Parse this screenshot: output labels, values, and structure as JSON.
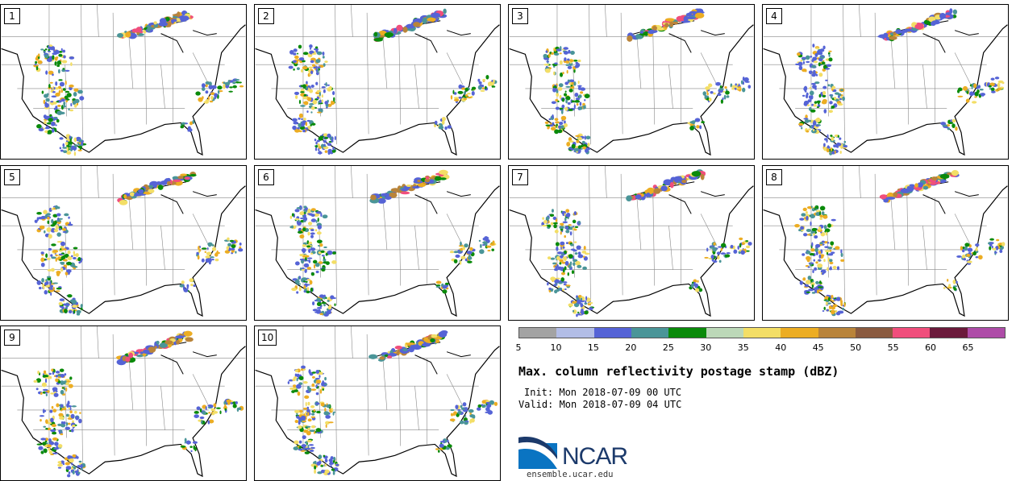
{
  "panels": [
    {
      "member": "1"
    },
    {
      "member": "2"
    },
    {
      "member": "3"
    },
    {
      "member": "4"
    },
    {
      "member": "5"
    },
    {
      "member": "6"
    },
    {
      "member": "7"
    },
    {
      "member": "8"
    },
    {
      "member": "9"
    },
    {
      "member": "10"
    }
  ],
  "colorbar": {
    "colors": [
      "#a3a3a3",
      "#b2bde6",
      "#5563d6",
      "#4a9598",
      "#0a8a0a",
      "#bcd8b8",
      "#f3de66",
      "#ecad23",
      "#b9843a",
      "#8a5a3f",
      "#f04e7c",
      "#6b1a3b",
      "#ae4ca8"
    ],
    "tick_labels": [
      "5",
      "10",
      "15",
      "20",
      "25",
      "30",
      "35",
      "40",
      "45",
      "50",
      "55",
      "60",
      "65"
    ]
  },
  "title": "Max. column reflectivity postage stamp (dBZ)",
  "init": "Init: Mon 2018-07-09 00 UTC",
  "valid": "Valid: Mon 2018-07-09 04 UTC",
  "logo": {
    "text": "NCAR",
    "url": "ensemble.ucar.edu"
  }
}
